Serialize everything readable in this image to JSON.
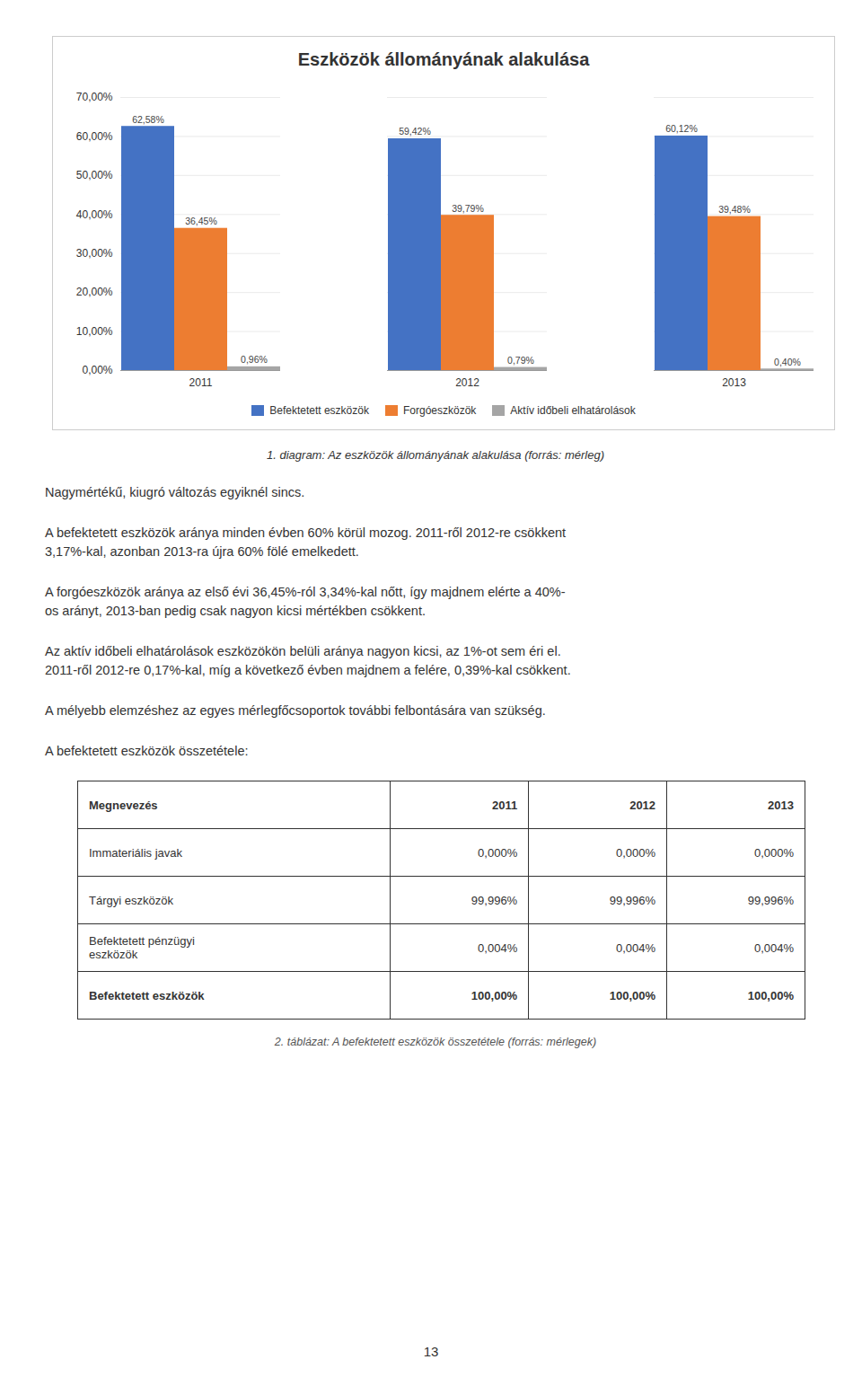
{
  "chart_data": [
    {
      "type": "bar",
      "title": "Eszközök állományának alakulása",
      "categories": [
        "2011",
        "2012",
        "2013"
      ],
      "series": [
        {
          "name": "Befektetett eszközök",
          "color": "#4472C4",
          "values": [
            62.58,
            59.42,
            60.12
          ],
          "value_labels": [
            "62,58%",
            "59,42%",
            "60,12%"
          ]
        },
        {
          "name": "Forgóeszközök",
          "color": "#ED7D31",
          "values": [
            36.45,
            39.79,
            39.48
          ],
          "value_labels": [
            "36,45%",
            "39,79%",
            "39,48%"
          ]
        },
        {
          "name": "Aktív időbeli elhatárolások",
          "color": "#A5A5A5",
          "values": [
            0.96,
            0.79,
            0.4
          ],
          "value_labels": [
            "0,96%",
            "0,79%",
            "0,40%"
          ]
        }
      ],
      "ylim": [
        0,
        70
      ],
      "yticks": [
        {
          "value": 0,
          "label": "0,00%"
        },
        {
          "value": 10,
          "label": "10,00%"
        },
        {
          "value": 20,
          "label": "20,00%"
        },
        {
          "value": 30,
          "label": "30,00%"
        },
        {
          "value": 40,
          "label": "40,00%"
        },
        {
          "value": 50,
          "label": "50,00%"
        },
        {
          "value": 60,
          "label": "60,00%"
        },
        {
          "value": 70,
          "label": "70,00%"
        }
      ],
      "grid": true,
      "legend": "bottom",
      "data_labels": true,
      "annotations": [
        "1. diagram: Az eszközök állományának alakulása (forrás: mérleg)",
        "Nagymértékű, kiugró változás egyiknél sincs.",
        "A befektetett eszközök aránya minden évben 60% körül mozog. 2011-ről 2012-re csökkent\n3,17%-kal, azonban 2013-ra újra 60% fölé emelkedett.",
        "A forgóeszközök aránya az első évi 36,45%-ról 3,34%-kal nőtt, így majdnem elérte a 40%-\nos arányt, 2013-ban pedig csak nagyon kicsi mértékben csökkent.",
        "Az aktív időbeli elhatárolások eszközökön belüli aránya nagyon kicsi, az 1%-ot sem éri el.\n2011-ről 2012-re 0,17%-kal, míg a következő évben majdnem a felére, 0,39%-kal csökkent.",
        "A mélyebb elemzéshez az egyes mérlegfőcsoportok további felbontására van szükség."
      ]
    },
    {
      "type": "table",
      "title": "A befektetett eszközök összetétele:",
      "xlabel": "Megnevezés",
      "categories": [
        "Immateriális javak",
        "Tárgyi eszközök",
        "Befektetett pénzügyi\neszközök",
        "Befektetett eszközök"
      ],
      "series": [
        {
          "name": "2011",
          "values": [
            0,
            99.996,
            0.004,
            100
          ],
          "value_labels": [
            "0,000%",
            "99,996%",
            "0,004%",
            "100,00%"
          ]
        },
        {
          "name": "2012",
          "values": [
            0,
            99.996,
            0.004,
            100
          ],
          "value_labels": [
            "0,000%",
            "99,996%",
            "0,004%",
            "100,00%"
          ]
        },
        {
          "name": "2013",
          "values": [
            0,
            99.996,
            0.004,
            100
          ],
          "value_labels": [
            "0,000%",
            "99,996%",
            "0,004%",
            "100,00%"
          ]
        }
      ],
      "annotations": [
        "2. táblázat: A befektetett eszközök összetétele (forrás: mérlegek)",
        "13"
      ]
    }
  ]
}
